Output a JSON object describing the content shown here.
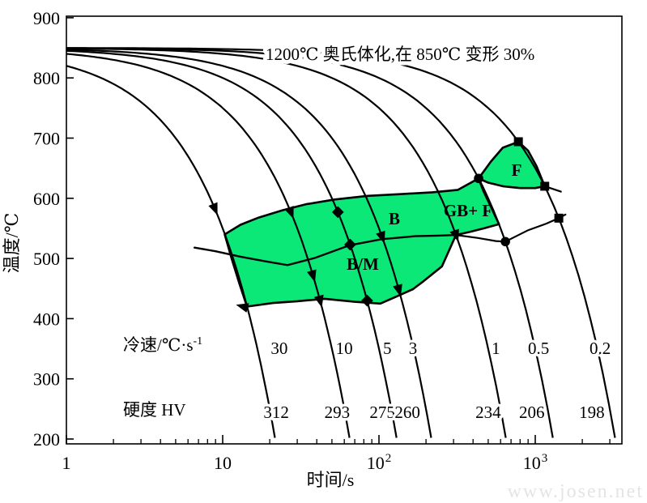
{
  "annotation": "1200℃ 奥氏体化,在 850℃ 变形 30%",
  "watermark": "www.josen.net",
  "axes": {
    "x_label": "时间/s",
    "y_label": "温度/℃",
    "y_ticks": [
      200,
      300,
      400,
      500,
      600,
      700,
      800,
      900
    ],
    "x_major_ticks": [
      {
        "t": 1,
        "base": "1",
        "exp": ""
      },
      {
        "t": 10,
        "base": "10",
        "exp": ""
      },
      {
        "t": 100,
        "base": "10",
        "exp": "2"
      },
      {
        "t": 1000,
        "base": "10",
        "exp": "3"
      }
    ]
  },
  "rows": {
    "rate_label": "冷速/℃·s",
    "rate_label_exp": "-1",
    "hardness_label": "硬度 HV"
  },
  "region_labels": {
    "B": "B",
    "BM": "B/M",
    "GBF": "GB+ F",
    "F": "F"
  },
  "chart_data": {
    "type": "line",
    "x_scale": "log",
    "xlim": [
      1,
      3400
    ],
    "ylim": [
      200,
      900
    ],
    "title": "1200℃ 奥氏体化,在 850℃ 变形 30%",
    "xlabel": "时间/s",
    "ylabel": "温度/℃",
    "start_temp_C": 850,
    "green_color": "#0ce878",
    "series": [
      {
        "rate": 30,
        "rate_text": "30",
        "hardness_HV": "312",
        "rate_label_t": 23,
        "hv_label_t": 22
      },
      {
        "rate": 10,
        "rate_text": "10",
        "hardness_HV": "293",
        "rate_label_t": 60,
        "hv_label_t": 54
      },
      {
        "rate": 5,
        "rate_text": "5",
        "hardness_HV": "275",
        "rate_label_t": 113,
        "hv_label_t": 105
      },
      {
        "rate": 3,
        "rate_text": "3",
        "hardness_HV": "260",
        "rate_label_t": 165,
        "hv_label_t": 152
      },
      {
        "rate": 1,
        "rate_text": "1",
        "hardness_HV": "234",
        "rate_label_t": 560,
        "hv_label_t": 500
      },
      {
        "rate": 0.5,
        "rate_text": "0.5",
        "hardness_HV": "206",
        "rate_label_t": 1050,
        "hv_label_t": 950
      },
      {
        "rate": 0.2,
        "rate_text": "0.2",
        "hardness_HV": "198",
        "rate_label_t": 2600,
        "hv_label_t": 2300
      }
    ],
    "rate_row_T": 352,
    "hv_row_T": 246,
    "regions": {
      "bainite_band_polygon": [
        [
          10.3,
          540
        ],
        [
          13,
          556
        ],
        [
          17,
          568
        ],
        [
          24,
          580
        ],
        [
          34,
          590
        ],
        [
          52,
          598
        ],
        [
          85,
          604
        ],
        [
          140,
          607
        ],
        [
          220,
          610
        ],
        [
          320,
          614
        ],
        [
          434,
          633
        ],
        [
          466,
          612
        ],
        [
          520,
          586
        ],
        [
          560,
          568
        ],
        [
          586,
          557
        ],
        [
          470,
          550
        ],
        [
          380,
          544
        ],
        [
          311,
          539
        ],
        [
          253,
          487
        ],
        [
          190,
          461
        ],
        [
          165,
          449
        ],
        [
          130,
          437
        ],
        [
          102,
          425
        ],
        [
          70,
          428
        ],
        [
          45,
          433
        ],
        [
          30,
          429
        ],
        [
          21,
          426
        ],
        [
          14.3,
          420
        ],
        [
          12.8,
          458
        ],
        [
          11.4,
          500
        ]
      ],
      "ferrite_polygon": [
        [
          434,
          633
        ],
        [
          520,
          661
        ],
        [
          620,
          684
        ],
        [
          780,
          694
        ],
        [
          900,
          679
        ],
        [
          1020,
          653
        ],
        [
          1150,
          620
        ],
        [
          1000,
          617
        ],
        [
          800,
          617
        ],
        [
          620,
          620
        ],
        [
          500,
          626
        ]
      ]
    },
    "lines": {
      "midline": [
        [
          6.6,
          518
        ],
        [
          9,
          512
        ],
        [
          13,
          503
        ],
        [
          19,
          495
        ],
        [
          26,
          489
        ],
        [
          39,
          501
        ],
        [
          65,
          522
        ],
        [
          104,
          532
        ],
        [
          170,
          537
        ],
        [
          240,
          538
        ],
        [
          311,
          539
        ]
      ],
      "midline_extension": [
        [
          311,
          539
        ],
        [
          430,
          534
        ],
        [
          560,
          529
        ],
        [
          644,
          528
        ],
        [
          900,
          547
        ],
        [
          1180,
          558
        ],
        [
          1415,
          567
        ],
        [
          1560,
          573
        ]
      ],
      "ferrite_tail": [
        [
          1150,
          620
        ],
        [
          1460,
          611
        ]
      ]
    },
    "markers": [
      {
        "shape": "arrow",
        "rate": 30,
        "t": 8.9,
        "T": 583
      },
      {
        "shape": "arrow",
        "rate": 10,
        "t": 27.3,
        "T": 577
      },
      {
        "shape": "arrow",
        "rate": 10,
        "t": 37.8,
        "T": 472
      },
      {
        "shape": "arrow",
        "rate": 10,
        "t": 42,
        "T": 430
      },
      {
        "shape": "diamond",
        "rate": 5,
        "t": 54.6,
        "T": 577
      },
      {
        "shape": "diamond",
        "rate": 5,
        "t": 65.4,
        "T": 523
      },
      {
        "shape": "diamond",
        "rate": 5,
        "t": 84,
        "T": 430
      },
      {
        "shape": "arrow",
        "rate": 3,
        "t": 104.7,
        "T": 536
      },
      {
        "shape": "arrow",
        "rate": 3,
        "t": 134,
        "T": 448
      },
      {
        "shape": "arrow",
        "rate": 1,
        "t": 311,
        "T": 539
      },
      {
        "shape": "circle",
        "rate": 0.5,
        "t": 434,
        "T": 633
      },
      {
        "shape": "circle",
        "rate": 0.5,
        "t": 644,
        "T": 528
      },
      {
        "shape": "square",
        "rate": 0.2,
        "t": 780,
        "T": 694
      },
      {
        "shape": "square",
        "rate": 0.2,
        "t": 1150,
        "T": 620
      },
      {
        "shape": "square",
        "rate": 0.2,
        "t": 1415,
        "T": 567
      },
      {
        "shape": "arrow-left",
        "t": 13.5,
        "T": 420
      }
    ]
  }
}
